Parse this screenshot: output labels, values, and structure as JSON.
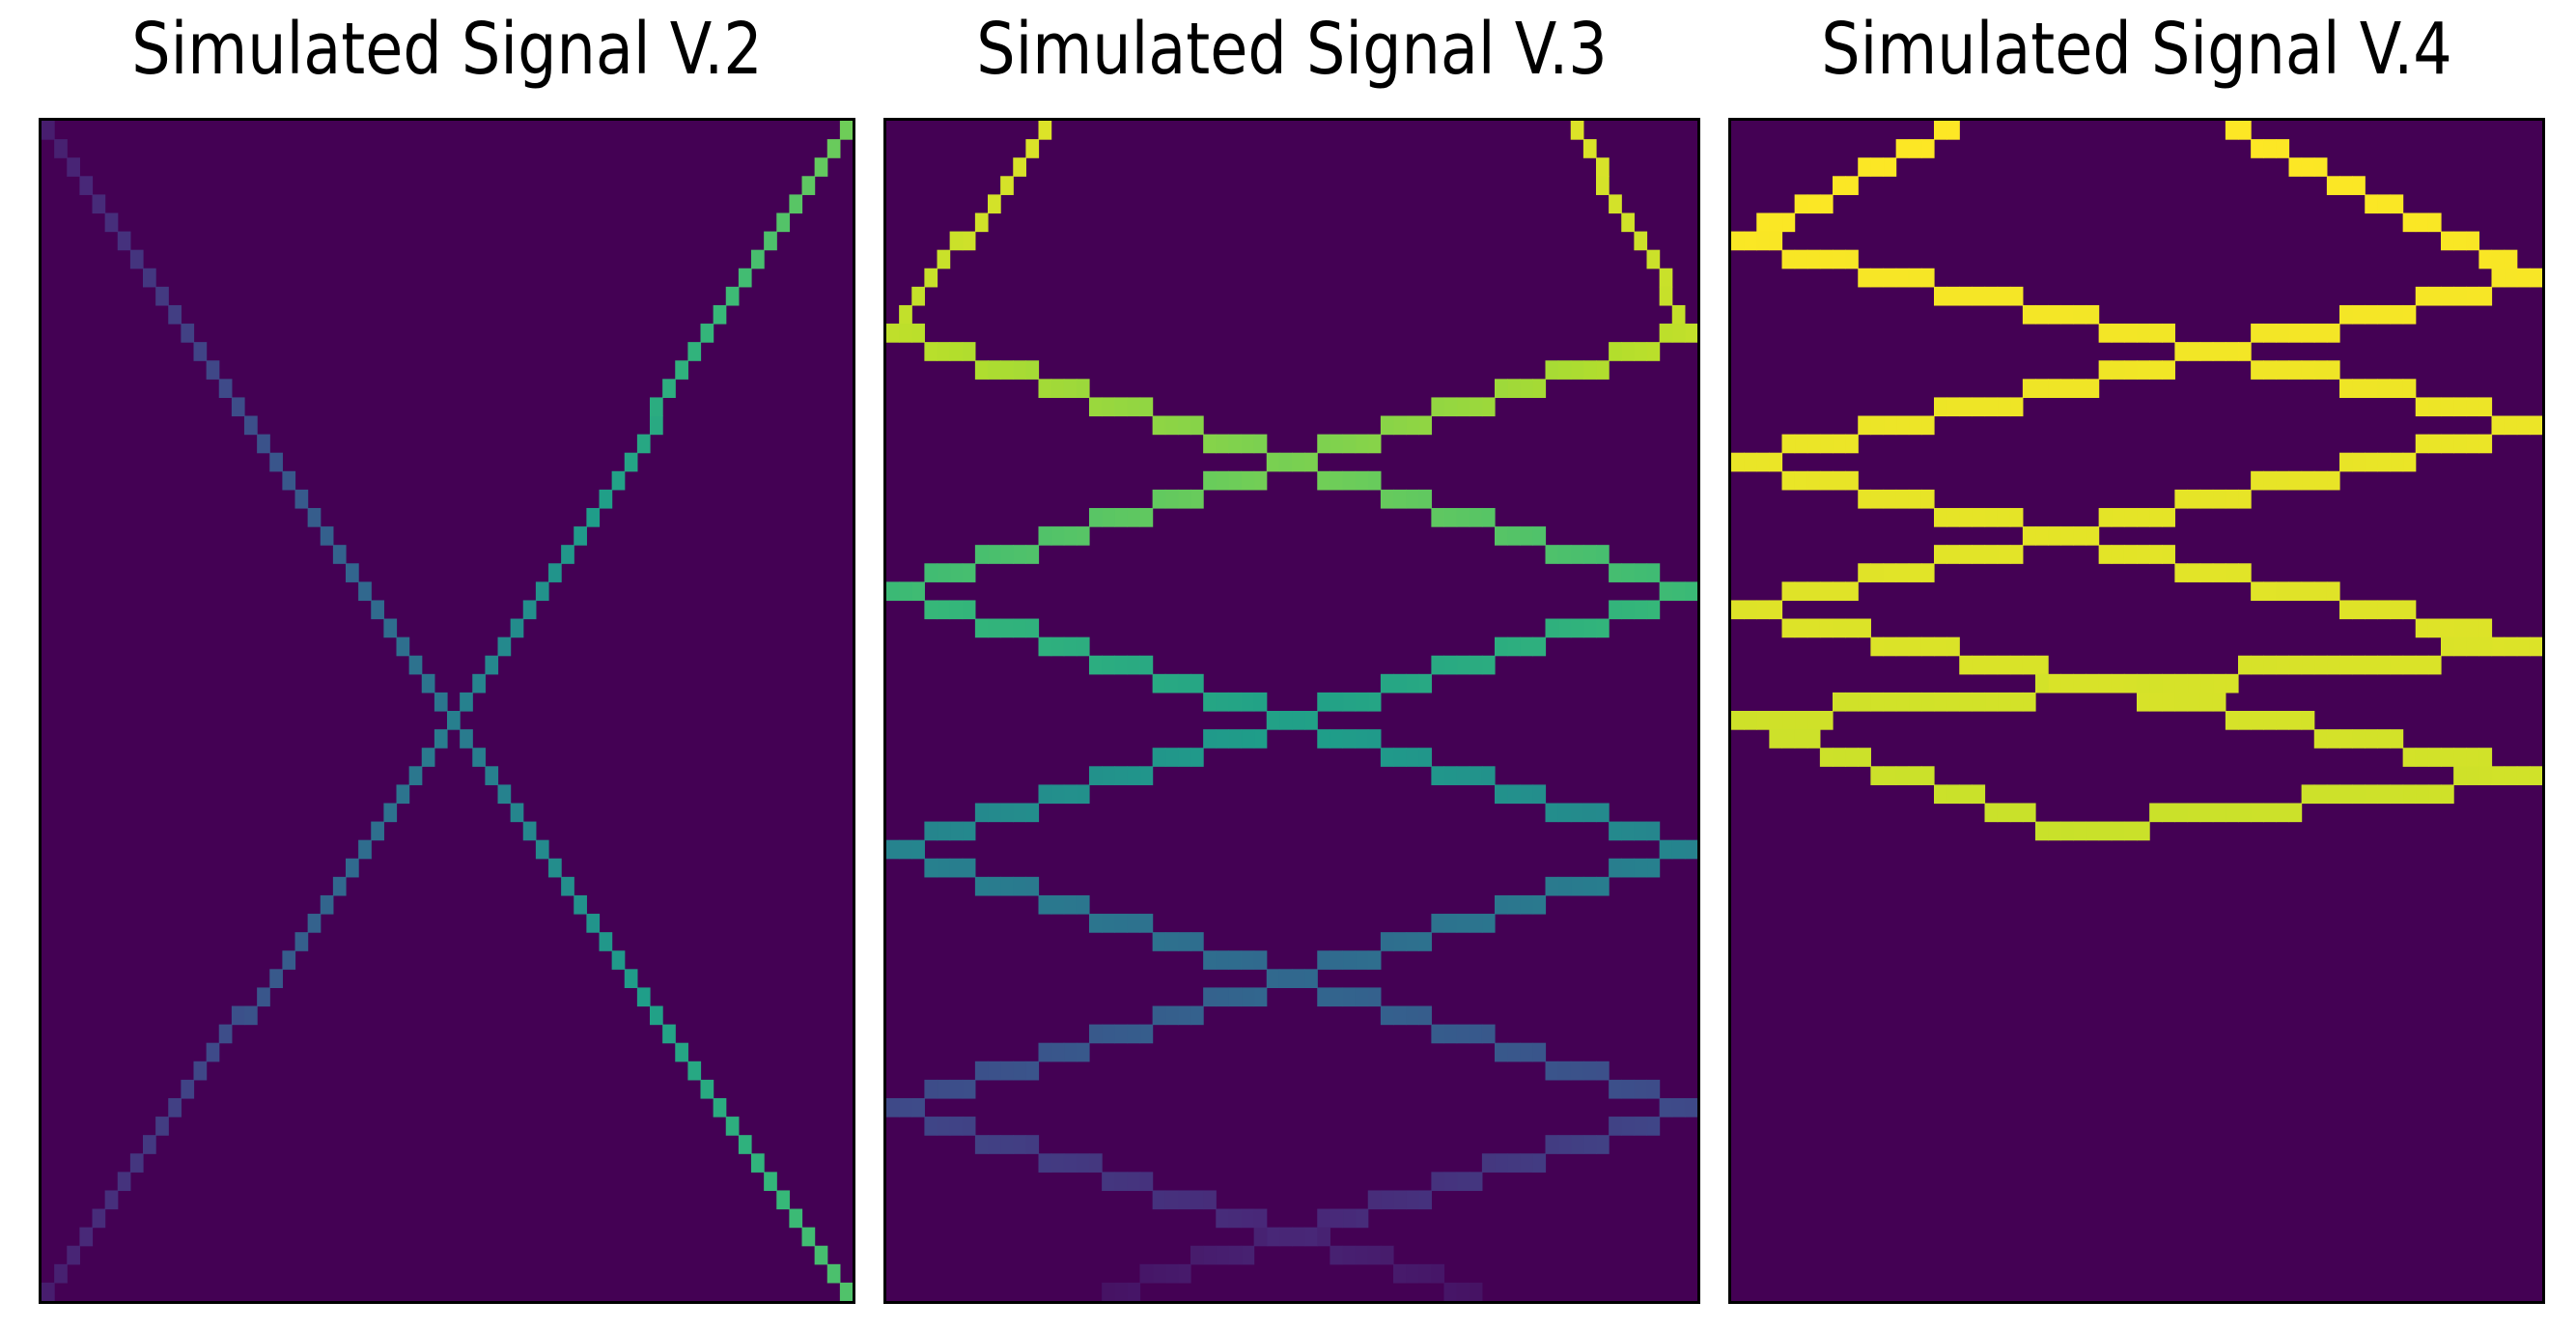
{
  "chart_data": [
    {
      "type": "heatmap",
      "title": "Simulated Signal V.2",
      "grid": 64,
      "cmap": "viridis",
      "background_value": 0.0,
      "traces": [
        {
          "points": [
            [
              0,
              0
            ],
            [
              32,
              32
            ],
            [
              63,
              63
            ]
          ],
          "v_start": 0.08,
          "v_end": 0.72
        },
        {
          "points": [
            [
              0,
              63
            ],
            [
              32,
              32
            ],
            [
              63,
              0
            ]
          ],
          "v_start": 0.08,
          "v_end": 0.78
        }
      ],
      "xticks": [
        0,
        15,
        30,
        45,
        60
      ],
      "yticks": [
        0,
        10,
        20,
        30,
        40,
        50,
        60
      ]
    },
    {
      "type": "heatmap",
      "title": "Simulated Signal V.3",
      "grid": 64,
      "cmap": "viridis",
      "background_value": 0.0,
      "traces": [
        {
          "points": [
            [
              12,
              0
            ],
            [
              0,
              11
            ],
            [
              63,
              25
            ],
            [
              0,
              39
            ],
            [
              63,
              53
            ],
            [
              17,
              63
            ]
          ],
          "v_start": 0.95,
          "v_end": 0.05
        },
        {
          "points": [
            [
              54,
              0
            ],
            [
              63,
              11
            ],
            [
              0,
              25
            ],
            [
              63,
              39
            ],
            [
              0,
              53
            ],
            [
              46,
              63
            ]
          ],
          "v_start": 0.95,
          "v_end": 0.05
        }
      ],
      "xticks": [
        0,
        15,
        30,
        45,
        60
      ],
      "yticks": [
        0,
        10,
        20,
        30,
        40,
        50,
        60
      ]
    },
    {
      "type": "heatmap",
      "title": "Simulated Signal V.4",
      "grid": 64,
      "cmap": "viridis",
      "background_value": 0.0,
      "traces": [
        {
          "points": [
            [
              17,
              0
            ],
            [
              0,
              6
            ],
            [
              63,
              16
            ],
            [
              0,
              26
            ],
            [
              63,
              35
            ],
            [
              26,
              38
            ]
          ],
          "v_start": 1.0,
          "v_end": 0.92
        },
        {
          "points": [
            [
              39,
              0
            ],
            [
              63,
              8
            ],
            [
              0,
              18
            ],
            [
              63,
              28
            ],
            [
              0,
              32
            ],
            [
              26,
              38
            ]
          ],
          "v_start": 1.0,
          "v_end": 0.92
        }
      ],
      "xticks": [
        0,
        15,
        30,
        45,
        60
      ],
      "yticks": [
        0,
        10,
        20,
        30,
        40,
        50,
        60
      ]
    }
  ]
}
